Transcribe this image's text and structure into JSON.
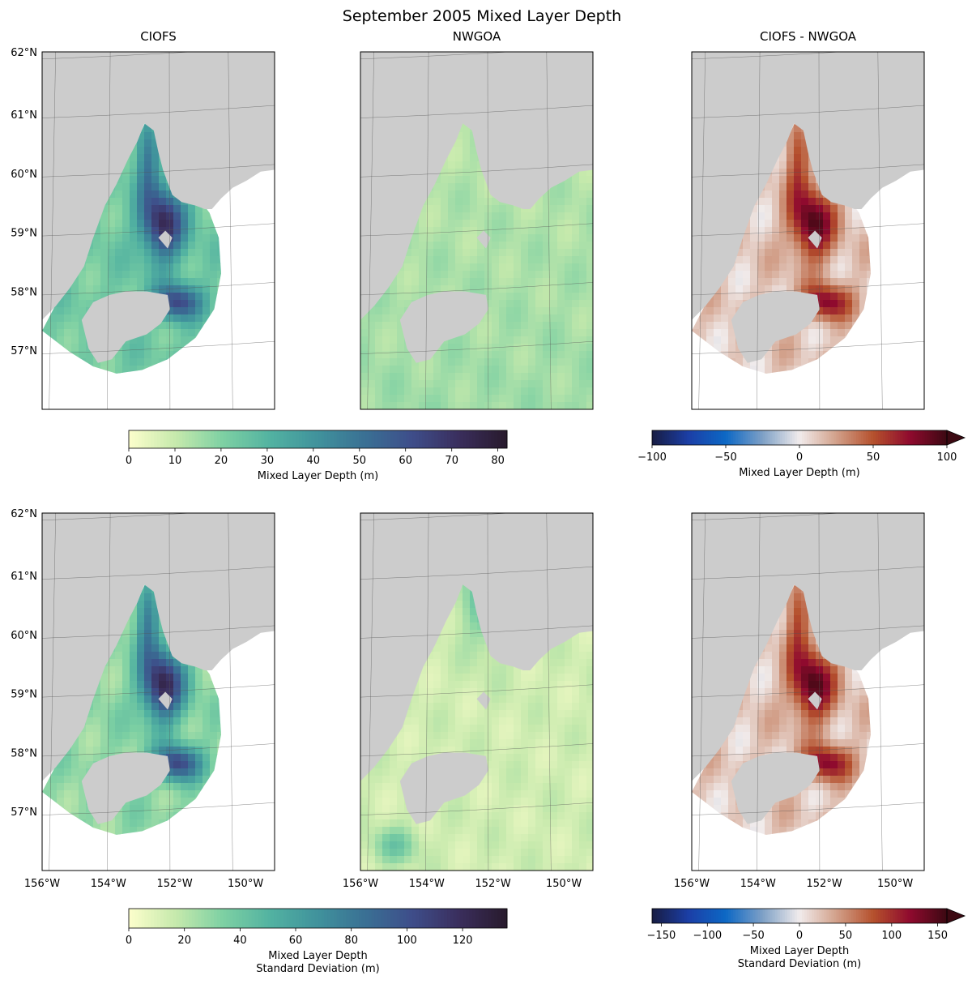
{
  "figure": {
    "title": "September 2005 Mixed Layer Depth",
    "land_color": "#cccccc"
  },
  "chart_data": [
    {
      "type": "heatmap",
      "id": "mean-ciofs",
      "title": "CIOFS",
      "variable": "Mixed Layer Depth (m)",
      "lon_range": [
        -156,
        -149
      ],
      "lat_range": [
        56,
        62
      ],
      "value_range": [
        0,
        82
      ],
      "colormap": "deep",
      "pattern": "ciofs_mean",
      "yticklabels": [
        "62°N",
        "61°N",
        "60°N",
        "59°N",
        "58°N",
        "57°N"
      ],
      "xticklabels": []
    },
    {
      "type": "heatmap",
      "id": "mean-nwgoa",
      "title": "NWGOA",
      "variable": "Mixed Layer Depth (m)",
      "lon_range": [
        -156,
        -149
      ],
      "lat_range": [
        56,
        62
      ],
      "value_range": [
        0,
        82
      ],
      "colormap": "deep",
      "pattern": "nwgoa_mean",
      "yticklabels": [],
      "xticklabels": []
    },
    {
      "type": "heatmap",
      "id": "mean-diff",
      "title": "CIOFS - NWGOA",
      "variable": "Mixed Layer Depth (m)",
      "lon_range": [
        -156,
        -149
      ],
      "lat_range": [
        56,
        62
      ],
      "value_range": [
        -100,
        100
      ],
      "colormap": "balance",
      "pattern": "diff_mean",
      "yticklabels": [],
      "xticklabels": []
    },
    {
      "type": "heatmap",
      "id": "std-ciofs",
      "title": "",
      "variable": "Mixed Layer Depth Standard Deviation (m)",
      "lon_range": [
        -156,
        -149
      ],
      "lat_range": [
        56,
        62
      ],
      "value_range": [
        0,
        136
      ],
      "colormap": "deep",
      "pattern": "ciofs_std",
      "yticklabels": [
        "62°N",
        "61°N",
        "60°N",
        "59°N",
        "58°N",
        "57°N"
      ],
      "xticklabels": [
        "156°W",
        "154°W",
        "152°W",
        "150°W"
      ]
    },
    {
      "type": "heatmap",
      "id": "std-nwgoa",
      "title": "",
      "variable": "Mixed Layer Depth Standard Deviation (m)",
      "lon_range": [
        -156,
        -149
      ],
      "lat_range": [
        56,
        62
      ],
      "value_range": [
        0,
        136
      ],
      "colormap": "deep",
      "pattern": "nwgoa_std",
      "yticklabels": [],
      "xticklabels": [
        "156°W",
        "154°W",
        "152°W",
        "150°W"
      ]
    },
    {
      "type": "heatmap",
      "id": "std-diff",
      "title": "",
      "variable": "Mixed Layer Depth Standard Deviation (m)",
      "lon_range": [
        -156,
        -149
      ],
      "lat_range": [
        56,
        62
      ],
      "value_range": [
        -160,
        160
      ],
      "colormap": "balance",
      "pattern": "diff_std",
      "yticklabels": [],
      "xticklabels": [
        "156°W",
        "154°W",
        "152°W",
        "150°W"
      ]
    }
  ],
  "colorbars": [
    {
      "id": "cbar-mean-deep",
      "colormap": "deep",
      "range": [
        0,
        82
      ],
      "ticks": [
        0,
        10,
        20,
        30,
        40,
        50,
        60,
        70,
        80
      ],
      "ticklabels": [
        "0",
        "10",
        "20",
        "30",
        "40",
        "50",
        "60",
        "70",
        "80"
      ],
      "label_lines": [
        "Mixed Layer Depth (m)"
      ],
      "extend": "neither"
    },
    {
      "id": "cbar-mean-diff",
      "colormap": "balance",
      "range": [
        -100,
        100
      ],
      "ticks": [
        -100,
        -50,
        0,
        50,
        100
      ],
      "ticklabels": [
        "−100",
        "−50",
        "0",
        "50",
        "100"
      ],
      "label_lines": [
        "Mixed Layer Depth (m)"
      ],
      "extend": "max"
    },
    {
      "id": "cbar-std-deep",
      "colormap": "deep",
      "range": [
        0,
        136
      ],
      "ticks": [
        0,
        20,
        40,
        60,
        80,
        100,
        120
      ],
      "ticklabels": [
        "0",
        "20",
        "40",
        "60",
        "80",
        "100",
        "120"
      ],
      "label_lines": [
        "Mixed Layer Depth",
        "Standard Deviation (m)"
      ],
      "extend": "neither"
    },
    {
      "id": "cbar-std-diff",
      "colormap": "balance",
      "range": [
        -160,
        160
      ],
      "ticks": [
        -150,
        -100,
        -50,
        0,
        50,
        100,
        150
      ],
      "ticklabels": [
        "−150",
        "−100",
        "−50",
        "0",
        "50",
        "100",
        "150"
      ],
      "label_lines": [
        "Mixed Layer Depth",
        "Standard Deviation (m)"
      ],
      "extend": "max"
    }
  ],
  "colormaps": {
    "deep": [
      "#fdfecc",
      "#c5e9ac",
      "#7dd0a3",
      "#52b2a1",
      "#40929c",
      "#3a7094",
      "#3e4d8a",
      "#3a2e5c",
      "#281a2c"
    ],
    "balance": [
      "#181c43",
      "#1b3fa7",
      "#0d68c5",
      "#7ea0c6",
      "#f1ecec",
      "#d2a08a",
      "#b5512d",
      "#8f0a2e",
      "#3c0912"
    ]
  }
}
